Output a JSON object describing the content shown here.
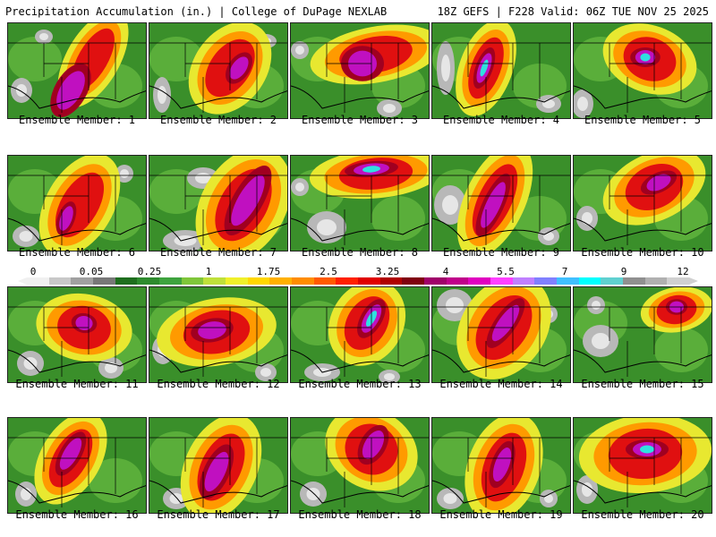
{
  "header": {
    "left": "Precipitation Accumulation (in.) | College of DuPage NEXLAB",
    "right": "18Z GEFS | F228 Valid: 06Z TUE NOV 25 2025"
  },
  "panels": [
    {
      "caption": "Ensemble Member: 1"
    },
    {
      "caption": "Ensemble Member: 2"
    },
    {
      "caption": "Ensemble Member: 3"
    },
    {
      "caption": "Ensemble Member: 4"
    },
    {
      "caption": "Ensemble Member: 5"
    },
    {
      "caption": "Ensemble Member: 6"
    },
    {
      "caption": "Ensemble Member: 7"
    },
    {
      "caption": "Ensemble Member: 8"
    },
    {
      "caption": "Ensemble Member: 9"
    },
    {
      "caption": "Ensemble Member: 10"
    },
    {
      "caption": "Ensemble Member: 11"
    },
    {
      "caption": "Ensemble Member: 12"
    },
    {
      "caption": "Ensemble Member: 13"
    },
    {
      "caption": "Ensemble Member: 14"
    },
    {
      "caption": "Ensemble Member: 15"
    },
    {
      "caption": "Ensemble Member: 16"
    },
    {
      "caption": "Ensemble Member: 17"
    },
    {
      "caption": "Ensemble Member: 18"
    },
    {
      "caption": "Ensemble Member: 19"
    },
    {
      "caption": "Ensemble Member: 20"
    }
  ],
  "colorbar": {
    "labels": [
      "0",
      "0.05",
      "0.25",
      "1",
      "1.75",
      "2.5",
      "3.25",
      "4",
      "5.5",
      "7",
      "9",
      "12"
    ],
    "colors": [
      "#f0f0f0",
      "#c8c8c8",
      "#a0a0a0",
      "#787878",
      "#1e6e1e",
      "#2e8b2e",
      "#3ea33e",
      "#7fc63a",
      "#bfe03a",
      "#f0f02a",
      "#ffd700",
      "#ffb000",
      "#ff8c00",
      "#ff5a00",
      "#ff2000",
      "#e00000",
      "#b00000",
      "#800010",
      "#a0006a",
      "#c0008a",
      "#e000c0",
      "#ff40ff",
      "#c080ff",
      "#8080ff",
      "#40c0ff",
      "#00ffff",
      "#60d0d0",
      "#909090",
      "#b0b0b0",
      "#d0d0d0"
    ]
  },
  "map_colors": {
    "background_green": "#3a8f2a",
    "grey": "#b8b8b8",
    "light": "#e6e6e6",
    "yellow": "#e8e830",
    "orange": "#ff9a00",
    "red": "#e01010",
    "darkred": "#a00020",
    "magenta": "#c010c0",
    "cyan": "#30e0e0"
  }
}
